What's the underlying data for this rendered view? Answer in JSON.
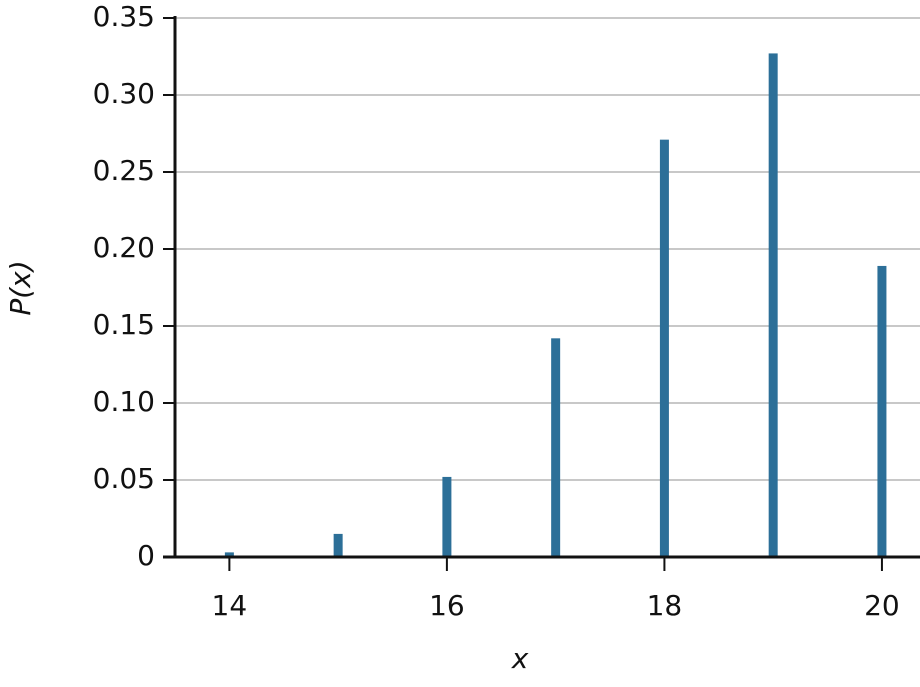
{
  "chart_data": {
    "type": "bar",
    "x": [
      14,
      15,
      16,
      17,
      18,
      19,
      20
    ],
    "values": [
      0.003,
      0.015,
      0.052,
      0.142,
      0.271,
      0.327,
      0.189
    ],
    "color": "#2c6f98",
    "xlabel": "x",
    "ylabel": "P(x)",
    "xlim": [
      13.5,
      20.35
    ],
    "xticks": [
      14,
      16,
      18,
      20
    ],
    "ylim": [
      0,
      0.35
    ],
    "yticks": [
      0,
      0.05,
      {
        "value": 0.1,
        "label": "0.10"
      },
      0.15,
      {
        "value": 0.2,
        "label": "0.20"
      },
      0.25,
      {
        "value": 0.3,
        "label": "0.30"
      },
      0.35
    ],
    "grid": true
  }
}
